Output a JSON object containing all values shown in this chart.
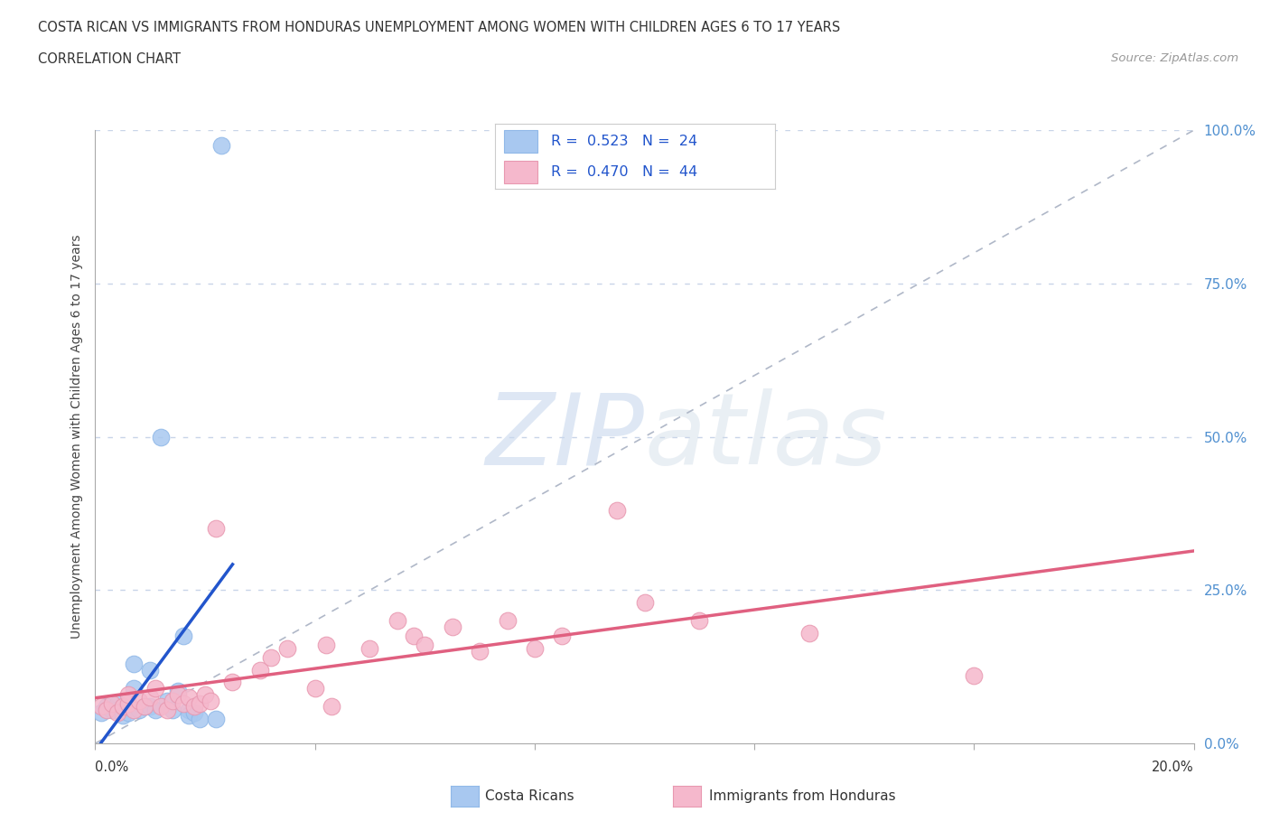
{
  "title_line1": "COSTA RICAN VS IMMIGRANTS FROM HONDURAS UNEMPLOYMENT AMONG WOMEN WITH CHILDREN AGES 6 TO 17 YEARS",
  "title_line2": "CORRELATION CHART",
  "source": "Source: ZipAtlas.com",
  "ylabel": "Unemployment Among Women with Children Ages 6 to 17 years",
  "right_yticks": [
    "0.0%",
    "25.0%",
    "50.0%",
    "75.0%",
    "100.0%"
  ],
  "right_ytick_vals": [
    0.0,
    0.25,
    0.5,
    0.75,
    1.0
  ],
  "watermark": "ZIPatlas",
  "costa_rican_color": "#a8c8f0",
  "honduras_color": "#f5b8cc",
  "trend_cr_color": "#2255cc",
  "trend_hon_color": "#e06080",
  "bg_color": "#ffffff",
  "grid_color": "#c8d4e8",
  "xmin": 0.0,
  "xmax": 0.2,
  "ymin": 0.0,
  "ymax": 1.0,
  "cr_x": [
    0.001,
    0.002,
    0.003,
    0.004,
    0.005,
    0.006,
    0.007,
    0.007,
    0.008,
    0.009,
    0.01,
    0.01,
    0.011,
    0.012,
    0.013,
    0.014,
    0.015,
    0.016,
    0.017,
    0.017,
    0.018,
    0.019,
    0.022,
    0.023
  ],
  "cr_y": [
    0.05,
    0.06,
    0.055,
    0.065,
    0.045,
    0.05,
    0.09,
    0.13,
    0.055,
    0.06,
    0.12,
    0.06,
    0.055,
    0.5,
    0.07,
    0.055,
    0.085,
    0.175,
    0.055,
    0.045,
    0.05,
    0.04,
    0.04,
    0.975
  ],
  "hon_x": [
    0.001,
    0.002,
    0.003,
    0.004,
    0.005,
    0.006,
    0.006,
    0.007,
    0.008,
    0.009,
    0.01,
    0.011,
    0.012,
    0.013,
    0.014,
    0.015,
    0.016,
    0.017,
    0.018,
    0.019,
    0.02,
    0.021,
    0.022,
    0.025,
    0.03,
    0.032,
    0.035,
    0.04,
    0.042,
    0.043,
    0.05,
    0.055,
    0.058,
    0.06,
    0.065,
    0.07,
    0.075,
    0.08,
    0.085,
    0.095,
    0.1,
    0.11,
    0.13,
    0.16
  ],
  "hon_y": [
    0.06,
    0.055,
    0.065,
    0.05,
    0.06,
    0.065,
    0.08,
    0.055,
    0.07,
    0.06,
    0.075,
    0.09,
    0.06,
    0.055,
    0.07,
    0.08,
    0.065,
    0.075,
    0.06,
    0.065,
    0.08,
    0.07,
    0.35,
    0.1,
    0.12,
    0.14,
    0.155,
    0.09,
    0.16,
    0.06,
    0.155,
    0.2,
    0.175,
    0.16,
    0.19,
    0.15,
    0.2,
    0.155,
    0.175,
    0.38,
    0.23,
    0.2,
    0.18,
    0.11
  ]
}
